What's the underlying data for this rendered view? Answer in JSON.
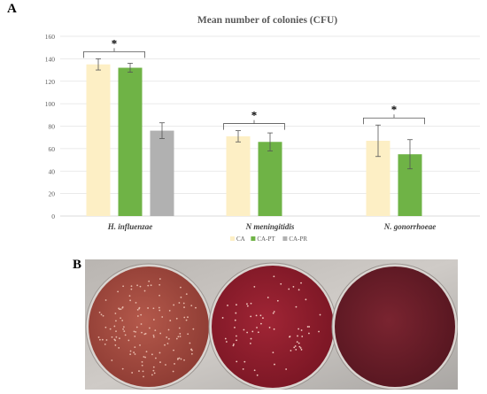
{
  "panels": {
    "a_label": "A",
    "b_label": "B"
  },
  "chart_data": {
    "type": "bar",
    "title": "Mean number of colonies (CFU)",
    "categories": [
      "H. influenzae",
      "N meningitidis",
      "N. gonorrhoeae"
    ],
    "series": [
      {
        "name": "CA",
        "color": "#fdefc5",
        "values": [
          135,
          71,
          67
        ],
        "errors": [
          5,
          5,
          14
        ]
      },
      {
        "name": "CA-PT",
        "color": "#6fb346",
        "values": [
          132,
          66,
          55
        ],
        "errors": [
          4,
          8,
          13
        ]
      },
      {
        "name": "CA-PR",
        "color": "#b1b1b1",
        "values": [
          76,
          null,
          null
        ],
        "errors": [
          7,
          null,
          null
        ]
      }
    ],
    "ylim": [
      0,
      160
    ],
    "yticks": [
      0,
      20,
      40,
      60,
      80,
      100,
      120,
      140,
      160
    ],
    "grid": true,
    "legend_position": "bottom-center",
    "significance": [
      {
        "category": "H. influenzae",
        "label": "*"
      },
      {
        "category": "N meningitidis",
        "label": "*"
      },
      {
        "category": "N. gonorrhoeae",
        "label": "*"
      }
    ]
  },
  "photo": {
    "plates": [
      {
        "color": "#a24a3f"
      },
      {
        "color": "#8f1d2c"
      },
      {
        "color": "#6b1e29"
      }
    ]
  }
}
